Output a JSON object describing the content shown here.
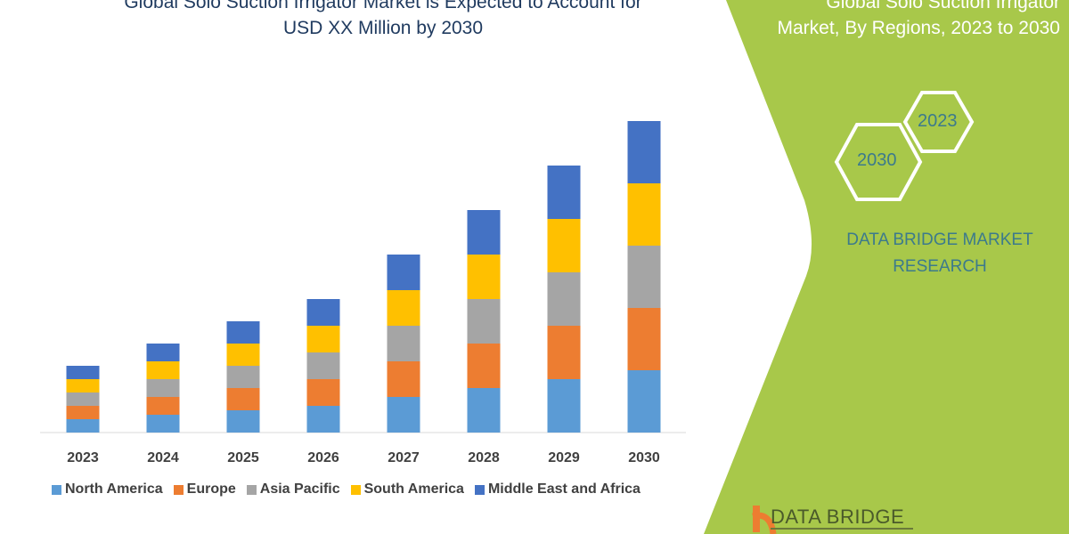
{
  "header": {
    "title_line1": "Global Solo Suction Irrigator Market is Expected to Account for",
    "title_line2": "USD XX Million by 2030",
    "right_title_line1": "Global Solo Suction Irrigator",
    "right_title_line2": "Market, By Regions, 2023 to 2030"
  },
  "side_panel": {
    "hex_a": "2023",
    "hex_b": "2030",
    "brand_line1": "DATA BRIDGE MARKET",
    "brand_line2": "RESEARCH",
    "logo_text": "DATA BRIDGE",
    "panel_color": "#a8c84a"
  },
  "chart_data": {
    "type": "bar",
    "stacked": true,
    "title": "Global Solo Suction Irrigator Market is Expected to Account for USD XX Million by 2030",
    "categories": [
      "2023",
      "2024",
      "2025",
      "2026",
      "2027",
      "2028",
      "2029",
      "2030"
    ],
    "series": [
      {
        "name": "North America",
        "color": "#5b9bd5",
        "values": [
          1.5,
          2,
          2.5,
          3,
          4,
          5,
          6,
          7
        ]
      },
      {
        "name": "Europe",
        "color": "#ed7d31",
        "values": [
          1.5,
          2,
          2.5,
          3,
          4,
          5,
          6,
          7
        ]
      },
      {
        "name": "Asia Pacific",
        "color": "#a5a5a5",
        "values": [
          1.5,
          2,
          2.5,
          3,
          4,
          5,
          6,
          7
        ]
      },
      {
        "name": "South America",
        "color": "#ffc000",
        "values": [
          1.5,
          2,
          2.5,
          3,
          4,
          5,
          6,
          7
        ]
      },
      {
        "name": "Middle East and Africa",
        "color": "#4472c4",
        "values": [
          1.5,
          2,
          2.5,
          3,
          4,
          5,
          6,
          7
        ]
      }
    ],
    "ylim": [
      0,
      36
    ],
    "grid": false,
    "legend_position": "bottom"
  }
}
